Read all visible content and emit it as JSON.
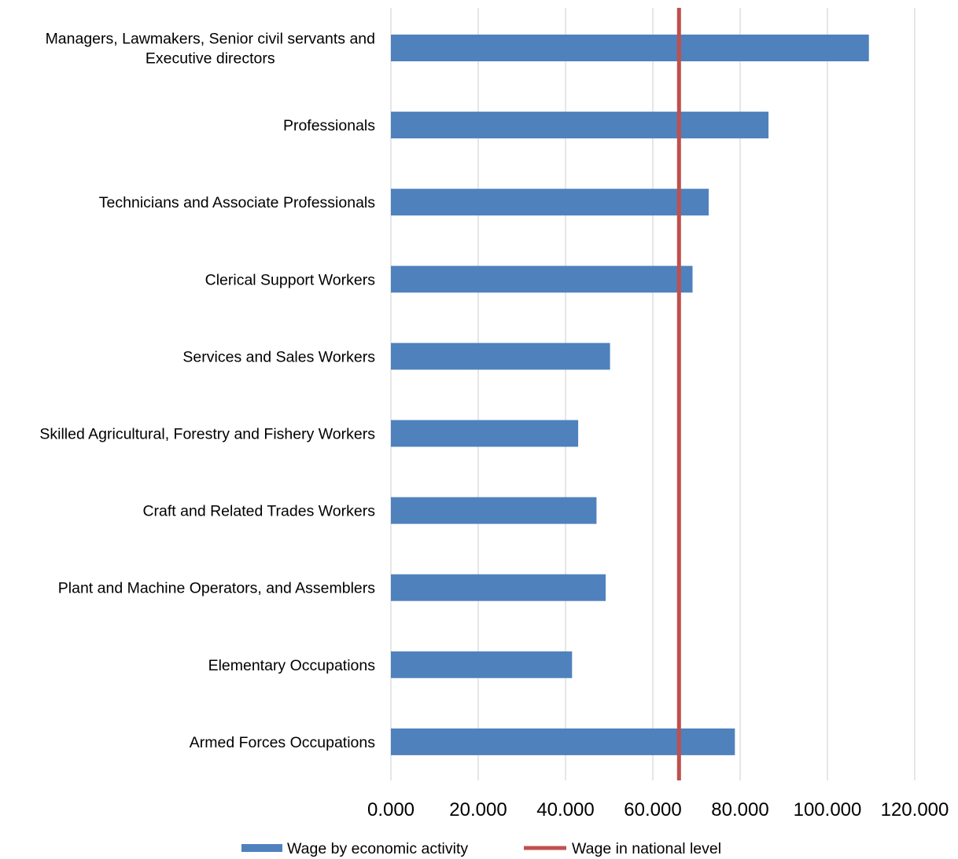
{
  "chart_data": {
    "type": "bar",
    "orientation": "horizontal",
    "title": "",
    "xlabel": "",
    "ylabel": "",
    "categories": [
      [
        "Managers, Lawmakers, Senior civil servants and",
        "Executive directors"
      ],
      [
        "Professionals"
      ],
      [
        "Technicians and Associate Professionals"
      ],
      [
        "Clerical Support Workers"
      ],
      [
        "Services and Sales Workers"
      ],
      [
        "Skilled Agricultural, Forestry and Fishery Workers"
      ],
      [
        "Craft and Related Trades Workers"
      ],
      [
        "Plant and Machine Operators, and Assemblers"
      ],
      [
        "Elementary Occupations"
      ],
      [
        "Armed Forces Occupations"
      ]
    ],
    "series": [
      {
        "name": "Wage by economic activity",
        "kind": "bar",
        "color": "#4f81bd",
        "values": [
          109.5,
          86.5,
          72.8,
          69.1,
          50.2,
          42.9,
          47.1,
          49.2,
          41.5,
          78.8
        ]
      },
      {
        "name": "Wage in national level",
        "kind": "reference-line",
        "color": "#c0504d",
        "value": 66.0
      }
    ],
    "xlim": [
      0,
      120
    ],
    "x_ticks": [
      0,
      20,
      40,
      60,
      80,
      100,
      120
    ],
    "x_tick_labels": [
      "0.000",
      "20.000",
      "40.000",
      "60.000",
      "80.000",
      "100.000",
      "120.000"
    ],
    "grid": true,
    "gridline_color": "#d9d9d9",
    "legend_position": "bottom"
  }
}
